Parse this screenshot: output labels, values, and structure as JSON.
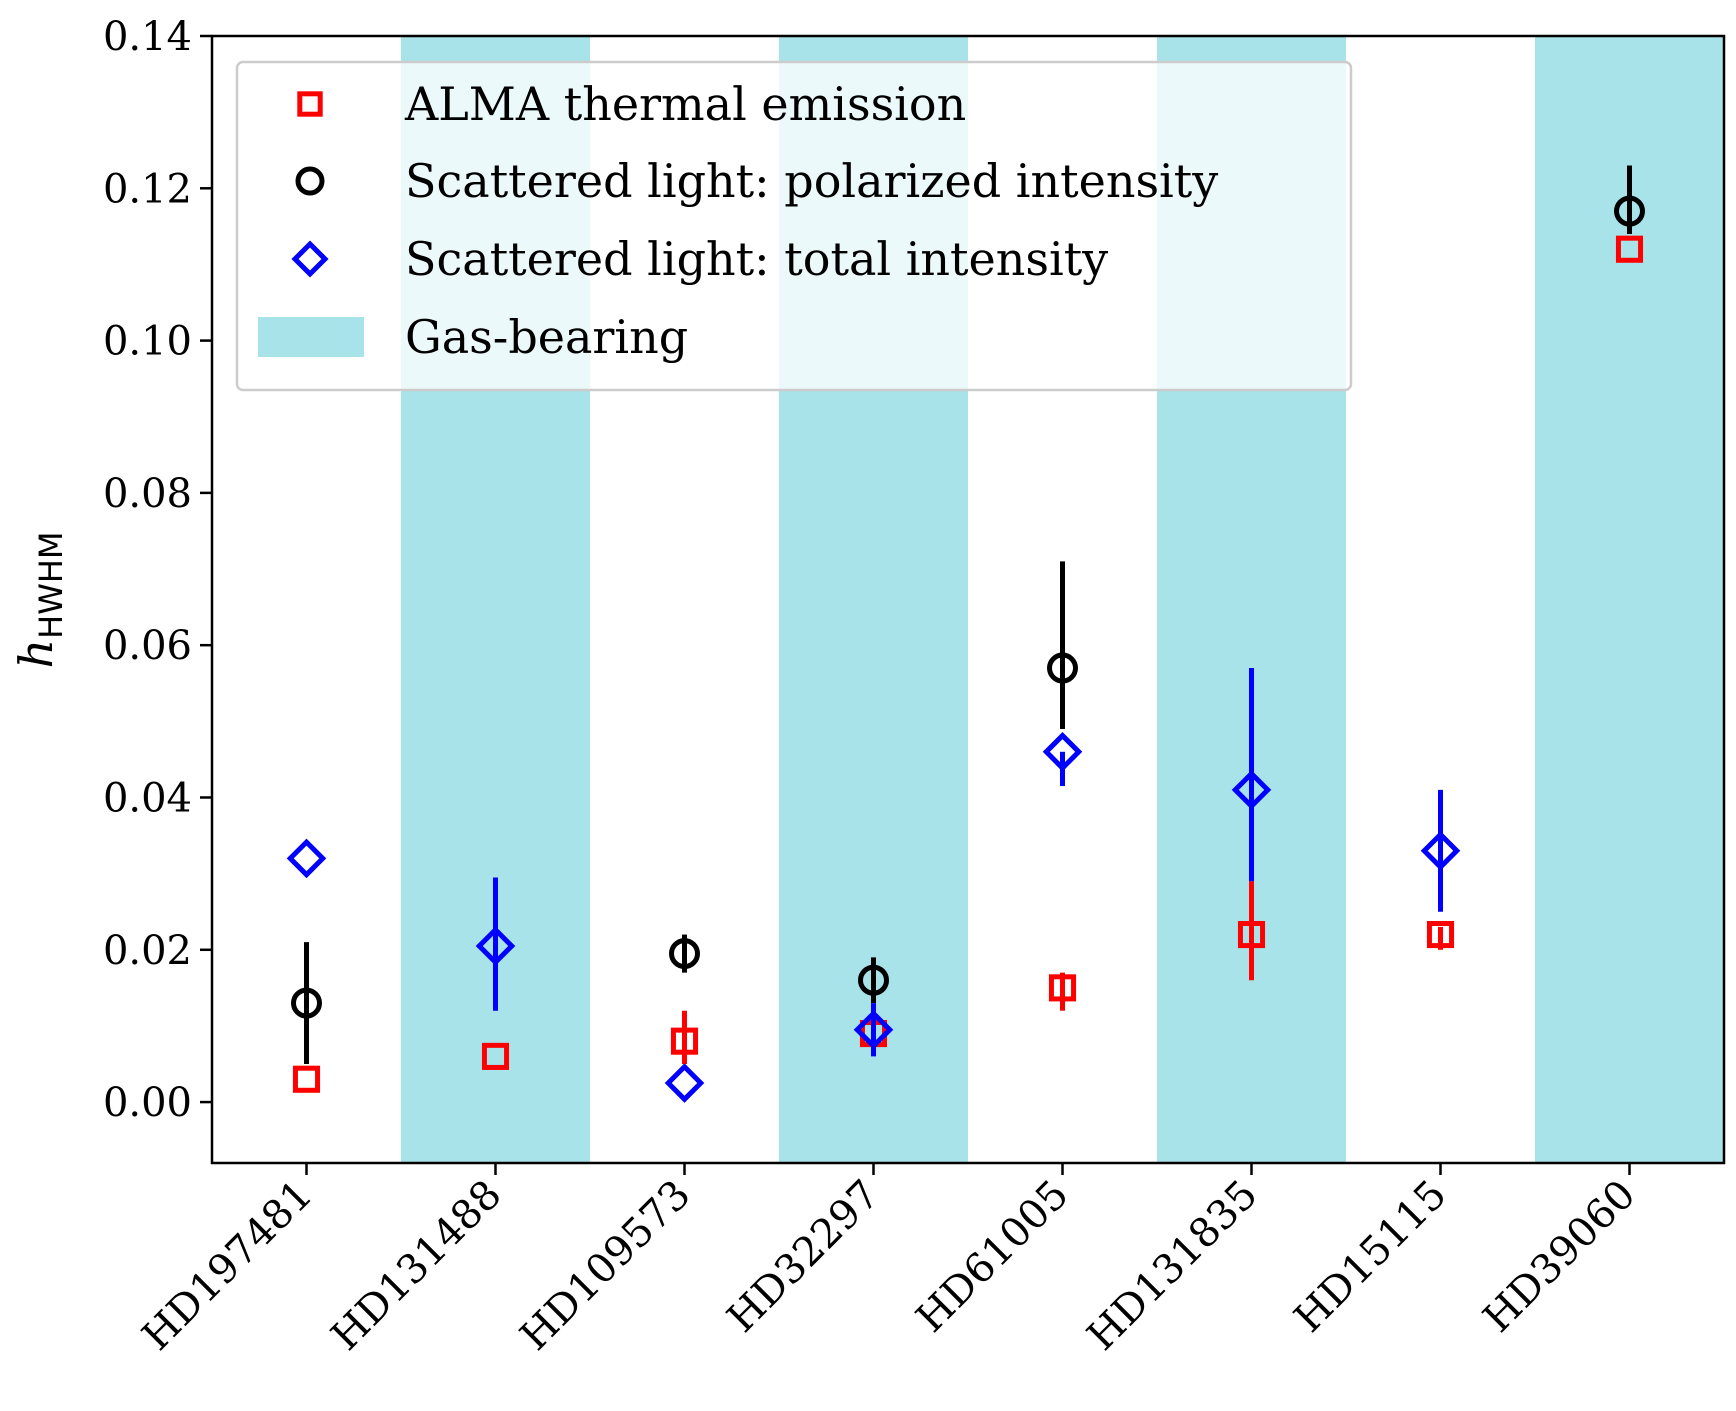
{
  "chart_data": {
    "type": "scatter",
    "categories": [
      "HD197481",
      "HD131488",
      "HD109573",
      "HD32297",
      "HD61005",
      "HD131835",
      "HD15115",
      "HD39060"
    ],
    "ylabel_main": "h",
    "ylabel_sub": "HWHM",
    "ylim": [
      -0.008,
      0.14
    ],
    "yticks": [
      0.0,
      0.02,
      0.04,
      0.06,
      0.08,
      0.1,
      0.12,
      0.14
    ],
    "ytick_labels": [
      "0.00",
      "0.02",
      "0.04",
      "0.06",
      "0.08",
      "0.10",
      "0.12",
      "0.14"
    ],
    "gas_bearing": [
      false,
      true,
      false,
      true,
      false,
      true,
      false,
      true
    ],
    "gas_label": "Gas-bearing",
    "gas_color": "#a8e3ea",
    "legend_position": "upper-left",
    "series": [
      {
        "name": "ALMA thermal emission",
        "marker": "square",
        "color": "#ff0000",
        "values": [
          0.003,
          0.006,
          0.008,
          0.009,
          0.015,
          0.022,
          0.022,
          0.112
        ],
        "err_low": [
          0.0,
          0.0,
          0.003,
          0.001,
          0.003,
          0.006,
          0.002,
          0.0
        ],
        "err_high": [
          0.0,
          0.0,
          0.004,
          0.001,
          0.002,
          0.007,
          0.001,
          0.0
        ]
      },
      {
        "name": "Scattered light: polarized intensity",
        "marker": "circle",
        "color": "#000000",
        "values": [
          0.013,
          null,
          0.0195,
          0.016,
          0.057,
          null,
          null,
          0.117
        ],
        "err_low": [
          0.008,
          null,
          0.0025,
          0.003,
          0.008,
          null,
          null,
          0.003
        ],
        "err_high": [
          0.008,
          null,
          0.0025,
          0.003,
          0.014,
          null,
          null,
          0.006
        ]
      },
      {
        "name": "Scattered light: total intensity",
        "marker": "diamond",
        "color": "#0000ff",
        "values": [
          0.032,
          0.0205,
          0.0025,
          0.0095,
          0.046,
          0.041,
          0.033,
          null
        ],
        "err_low": [
          0.0,
          0.0085,
          0.0,
          0.0035,
          0.0045,
          0.012,
          0.008,
          null
        ],
        "err_high": [
          0.0,
          0.009,
          0.0,
          0.0035,
          0.0,
          0.016,
          0.008,
          null
        ]
      }
    ]
  }
}
